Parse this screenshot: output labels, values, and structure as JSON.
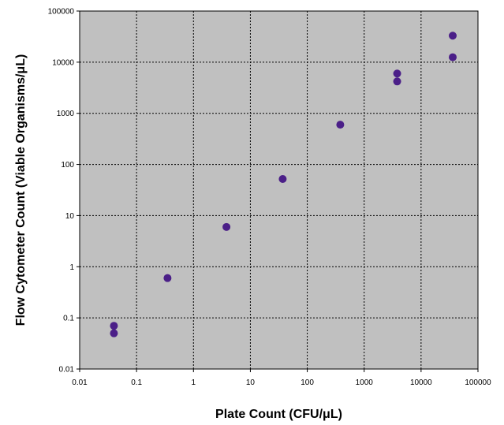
{
  "chart_data": {
    "type": "scatter",
    "title": "",
    "xlabel": "Plate Count (CFU/μL)",
    "ylabel": "Flow Cytometer Count (Viable Organisms/μL)",
    "xscale": "log",
    "yscale": "log",
    "xlim": [
      0.01,
      100000
    ],
    "ylim": [
      0.01,
      100000
    ],
    "grid": true,
    "legend": "none",
    "colors": {
      "plot_background": "#c0c0c0",
      "marker": "#4b1f88",
      "grid": "#000000"
    },
    "x_ticks": [
      "0.01",
      "0.1",
      "1",
      "10",
      "100",
      "1000",
      "10000",
      "100000"
    ],
    "y_ticks": [
      "0.01",
      "0.1",
      "1",
      "10",
      "100",
      "1000",
      "10000",
      "100000"
    ],
    "series": [
      {
        "points": [
          {
            "x": 0.04,
            "y": 0.07
          },
          {
            "x": 0.04,
            "y": 0.05
          },
          {
            "x": 0.35,
            "y": 0.6
          },
          {
            "x": 3.8,
            "y": 6
          },
          {
            "x": 37,
            "y": 52
          },
          {
            "x": 380,
            "y": 600
          },
          {
            "x": 3800,
            "y": 6000
          },
          {
            "x": 3800,
            "y": 4200
          },
          {
            "x": 36000,
            "y": 33000
          },
          {
            "x": 36000,
            "y": 12500
          }
        ]
      }
    ]
  }
}
